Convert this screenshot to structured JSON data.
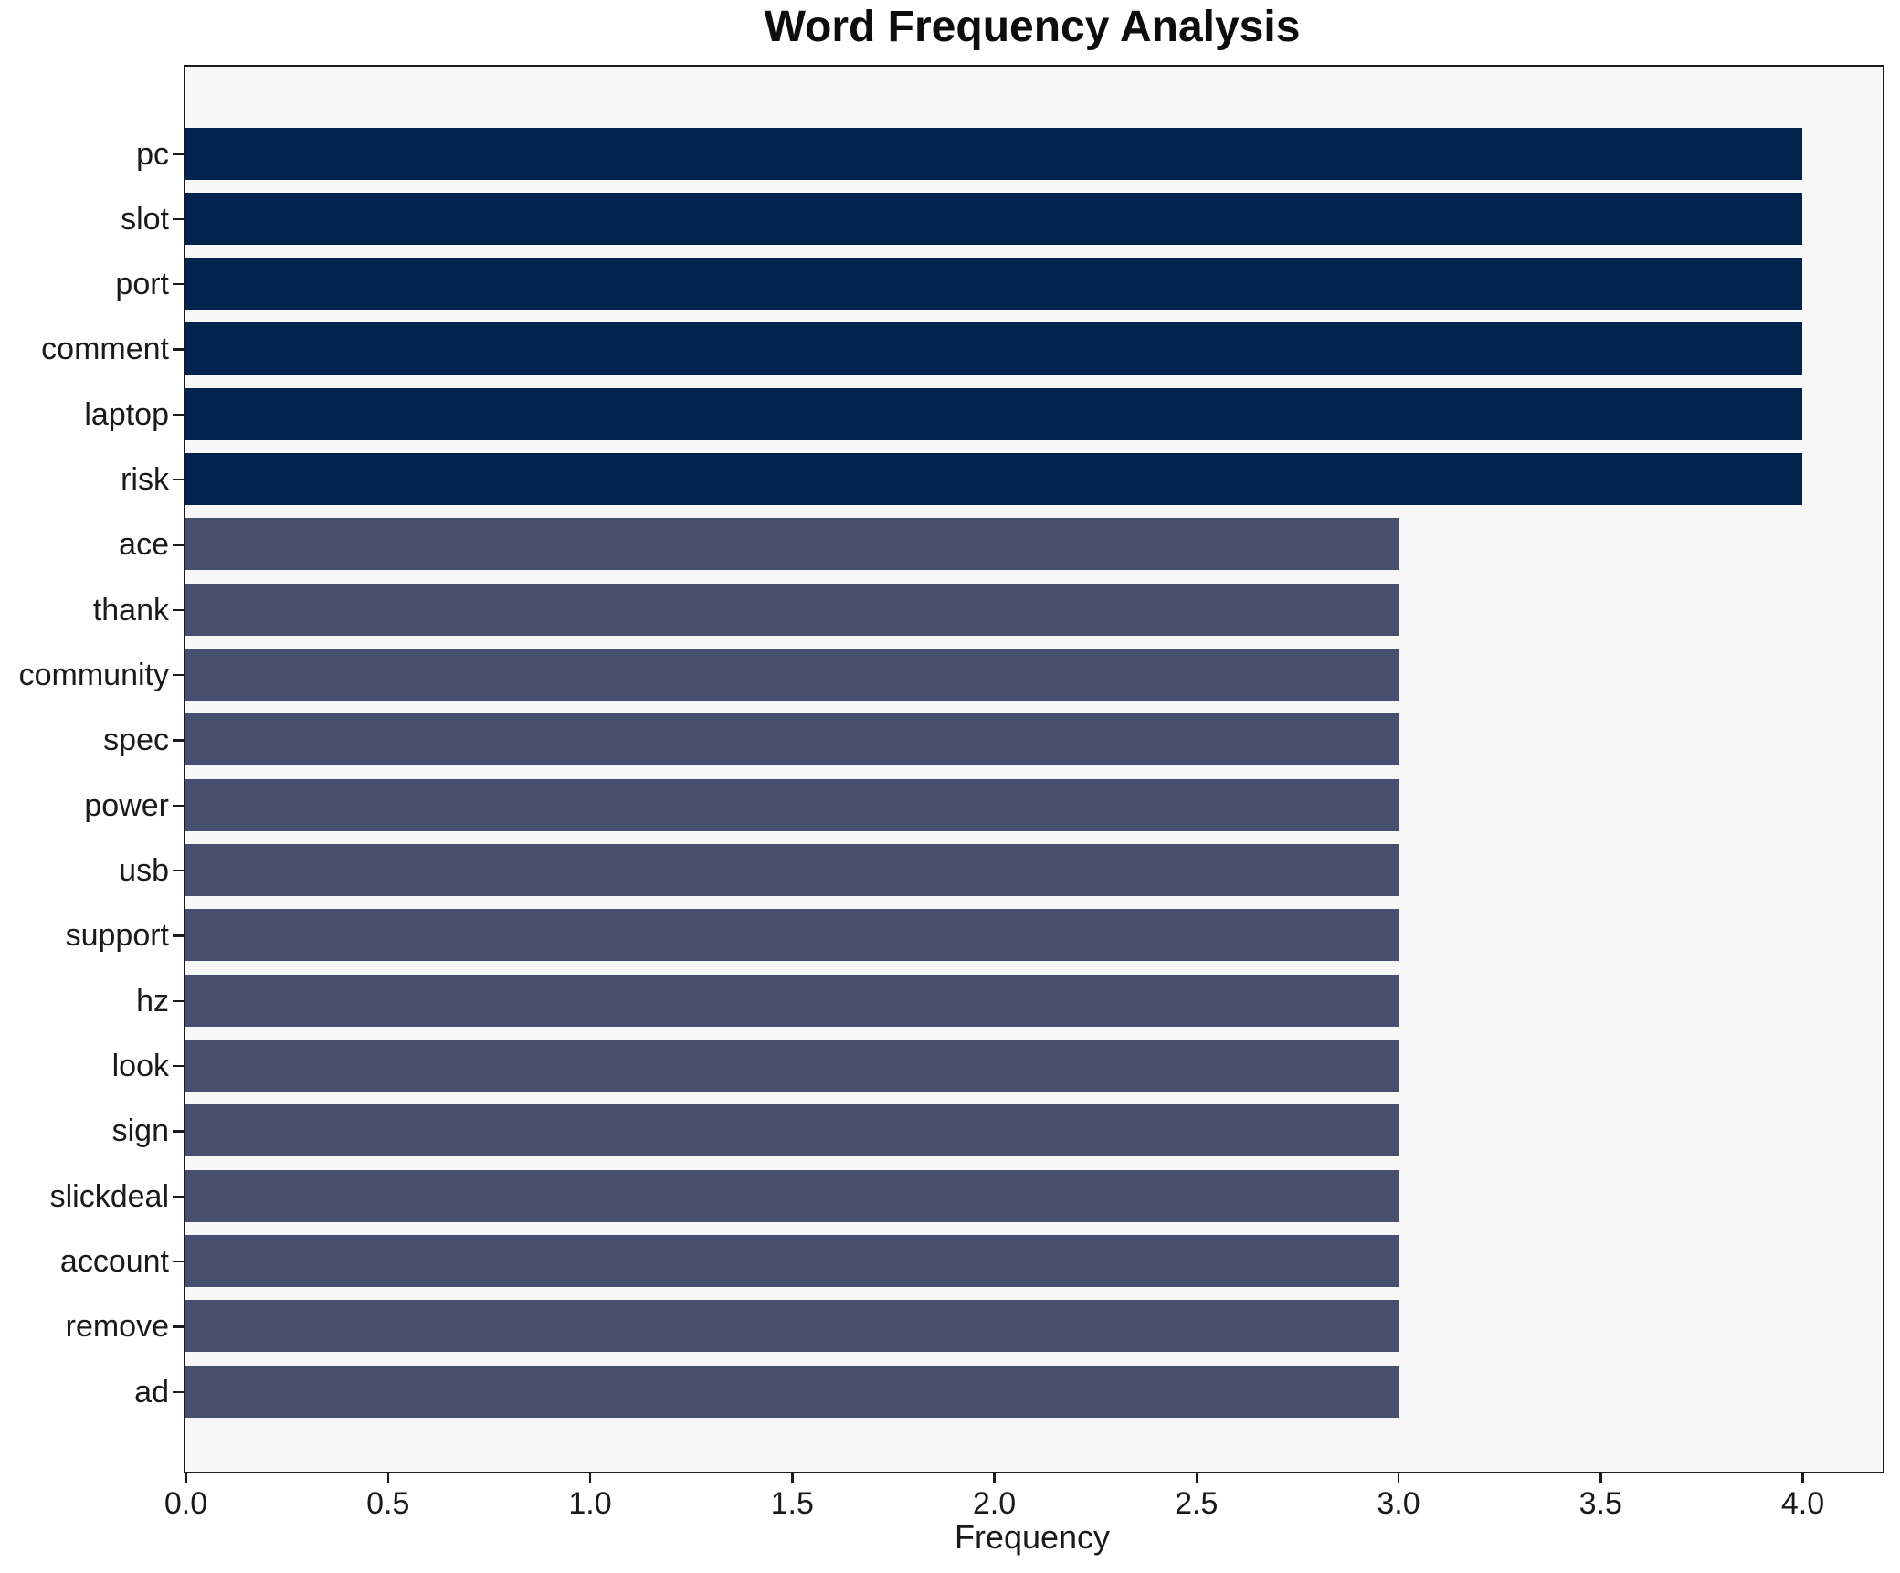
{
  "title": "Word Frequency Analysis",
  "chart_data": {
    "type": "bar",
    "orientation": "horizontal",
    "title": "Word Frequency Analysis",
    "xlabel": "Frequency",
    "ylabel": "",
    "categories": [
      "pc",
      "slot",
      "port",
      "comment",
      "laptop",
      "risk",
      "ace",
      "thank",
      "community",
      "spec",
      "power",
      "usb",
      "support",
      "hz",
      "look",
      "sign",
      "slickdeal",
      "account",
      "remove",
      "ad"
    ],
    "values": [
      4,
      4,
      4,
      4,
      4,
      4,
      3,
      3,
      3,
      3,
      3,
      3,
      3,
      3,
      3,
      3,
      3,
      3,
      3,
      3
    ],
    "xlim": [
      0,
      4.2
    ],
    "xticks": [
      0,
      0.5,
      1,
      1.5,
      2,
      2.5,
      3,
      3.5,
      4
    ],
    "xtick_labels": [
      "0.0",
      "0.5",
      "1.0",
      "1.5",
      "2.0",
      "2.5",
      "3.0",
      "3.5",
      "4.0"
    ],
    "grid": false,
    "legend_position": "none",
    "colors": {
      "bar_value_4": "#02234e",
      "bar_value_3": "#46506e",
      "plot_background": "#f7f7f7",
      "figure_background": "#ffffff",
      "axis_frame": "#1a1a1a",
      "text": "#1a1a1a"
    }
  }
}
